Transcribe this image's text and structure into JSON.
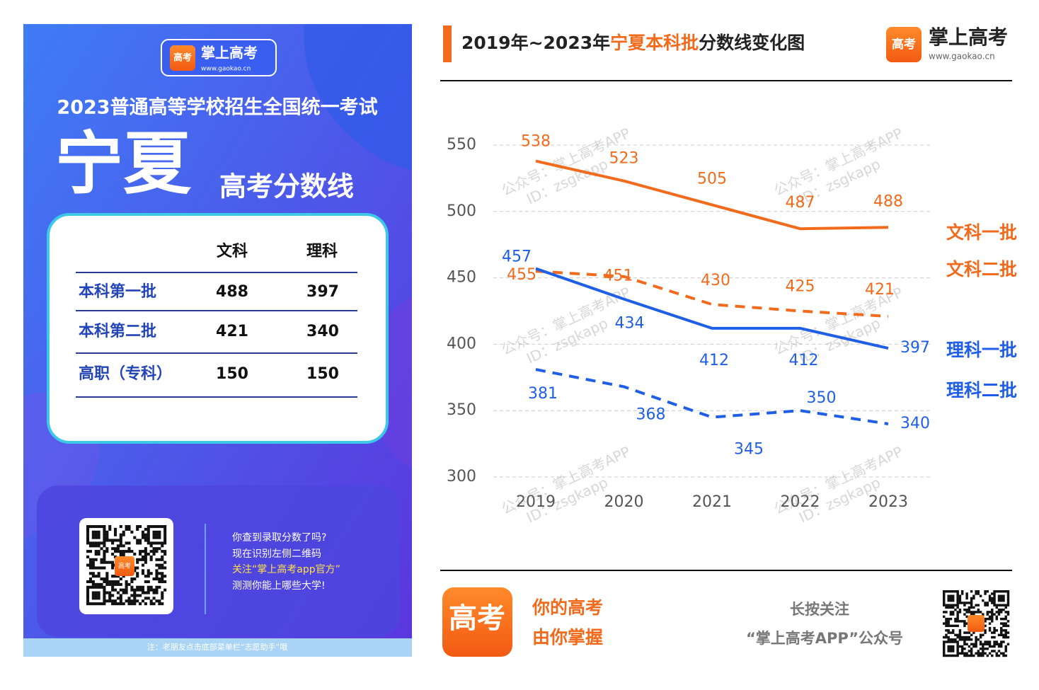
{
  "poster": {
    "logo_name": "掌上高考",
    "logo_url": "www.gaokao.cn",
    "logo_icon": "高考",
    "exam": "2023普通高等学校招生全国统一考试",
    "province": "宁夏",
    "subtitle": "高考分数线",
    "table": {
      "header": [
        "文科",
        "理科"
      ],
      "rows": [
        [
          "本科第一批",
          488,
          397
        ],
        [
          "本科第二批",
          421,
          340
        ],
        [
          "高职（专科）",
          150,
          150
        ]
      ]
    },
    "qr_icon": "高考",
    "qr_text": [
      "你查到录取分数了吗?",
      "现在识别左侧二维码",
      "关注“掌上高考app官方”",
      "测测你能上哪些大学!"
    ],
    "note": "注：老朋友点击底部菜单栏“志愿助手”哦"
  },
  "header": {
    "title_parts": [
      "2019年~2023年",
      "宁夏本科批",
      "分数线变化图"
    ],
    "logo_icon": "高考",
    "logo_name": "掌上高考",
    "logo_url": "www.gaokao.cn"
  },
  "chart_data": {
    "type": "line",
    "title": "2019年~2023年宁夏本科批分数线变化图",
    "categories": [
      "2019",
      "2020",
      "2021",
      "2022",
      "2023"
    ],
    "ylim": [
      300,
      550
    ],
    "yticks": [
      300,
      350,
      400,
      450,
      500,
      550
    ],
    "grid": true,
    "watermark": [
      "公众号：掌上高考APP",
      "ID：zsgkapp"
    ],
    "series": [
      {
        "name": "文科一批",
        "color": "#f26b1d",
        "dashed": false,
        "values": [
          538,
          523,
          505,
          487,
          488
        ]
      },
      {
        "name": "文科二批",
        "color": "#f26b1d",
        "dashed": true,
        "values": [
          455,
          451,
          430,
          425,
          421
        ]
      },
      {
        "name": "理科一批",
        "color": "#1f5fe6",
        "dashed": false,
        "values": [
          457,
          434,
          412,
          412,
          397
        ]
      },
      {
        "name": "理科二批",
        "color": "#1f5fe6",
        "dashed": true,
        "values": [
          381,
          368,
          345,
          350,
          340
        ]
      }
    ]
  },
  "footer": {
    "icon": "高考",
    "slogan": [
      "你的高考",
      "由你掌握"
    ],
    "follow": [
      "长按关注",
      "“掌上高考APP”公众号"
    ]
  }
}
